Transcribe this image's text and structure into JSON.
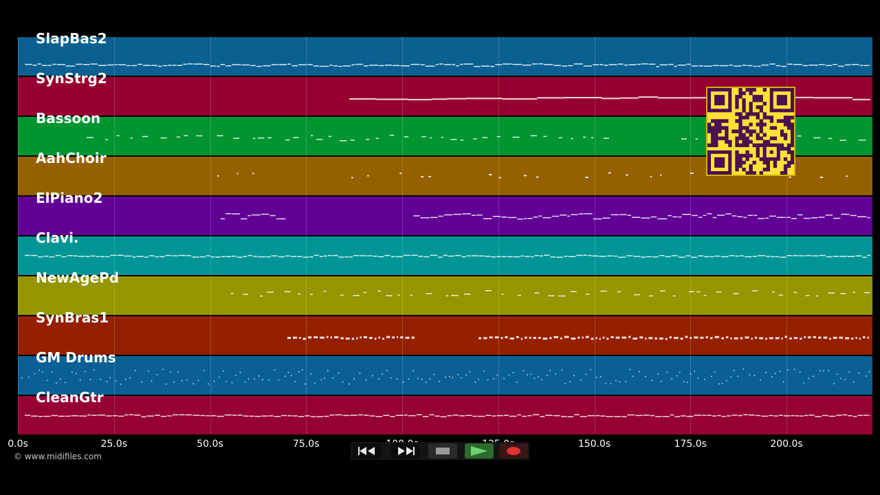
{
  "tracks": [
    {
      "name": "SlapBas2",
      "color": "#0a6090"
    },
    {
      "name": "SynStrg2",
      "color": "#950030"
    },
    {
      "name": "Bassoon",
      "color": "#009530"
    },
    {
      "name": "AahChoir",
      "color": "#956000"
    },
    {
      "name": "ElPiano2",
      "color": "#600095"
    },
    {
      "name": "Clavi.",
      "color": "#009595"
    },
    {
      "name": "NewAgePd",
      "color": "#959500"
    },
    {
      "name": "SynBras1",
      "color": "#952000"
    },
    {
      "name": "GM Drums",
      "color": "#0a6095"
    },
    {
      "name": "CleanGtr",
      "color": "#950035"
    }
  ],
  "timeline": {
    "ticks": [
      "0.0s",
      "25.0s",
      "50.0s",
      "75.0s",
      "100.0s",
      "125.0s",
      "150.0s",
      "175.0s",
      "200.0s"
    ],
    "tick_values": [
      0,
      25,
      50,
      75,
      100,
      125,
      150,
      175,
      200
    ],
    "max_seconds": 222
  },
  "footer": {
    "copyright": "© www.midifiles.com"
  },
  "controls": {
    "rewind": "rewind-icon",
    "forward": "fast-forward-icon",
    "stop": "stop-icon",
    "play": "play-icon",
    "record": "record-icon"
  }
}
